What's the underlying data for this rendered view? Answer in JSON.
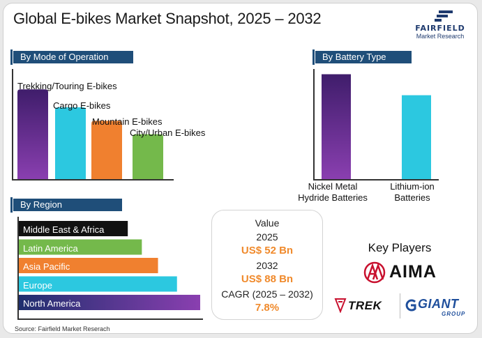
{
  "title": "Global E-bikes Market Snapshot, 2025 – 2032",
  "logo": {
    "name": "FAIRFIELD",
    "sub": "Market Research",
    "icon": "fairfield-logo-icon"
  },
  "sections": {
    "mode": "By Mode of Operation",
    "battery": "By Battery Type",
    "region": "By Region"
  },
  "colors": {
    "header": "#1f4e79",
    "purple_top": "#3f1d6b",
    "purple_bottom": "#8a3fb0",
    "cyan": "#2cc8e0",
    "orange": "#f0802f",
    "green": "#74b94b",
    "black": "#111111",
    "accent": "#f08a2c",
    "aima_red": "#c8102e",
    "giant_blue": "#1f4f9c"
  },
  "chart_data": [
    {
      "type": "bar",
      "title": "By Mode of Operation",
      "categories": [
        "Trekking/Touring E-bikes",
        "Cargo E-bikes",
        "Mountain E-bikes",
        "City/Urban E-bikes"
      ],
      "values": [
        4,
        3.2,
        2.6,
        2
      ],
      "ylim": [
        0,
        4.6
      ]
    },
    {
      "type": "bar",
      "title": "By Battery Type",
      "categories": [
        "Nickel Metal Hydride Batteries",
        "Lithium-ion Batteries"
      ],
      "category_lines": [
        [
          "Nickel Metal",
          "Hydride Batteries"
        ],
        [
          "Lithium-ion",
          "Batteries"
        ]
      ],
      "values": [
        10,
        8
      ],
      "ylim": [
        0,
        10.5
      ]
    },
    {
      "type": "bar",
      "orientation": "horizontal",
      "title": "By Region",
      "categories": [
        "Middle East & Africa",
        "Latin America",
        "Asia Pacific",
        "Europe",
        "North America"
      ],
      "values": [
        155,
        175,
        198,
        225,
        258
      ],
      "xlim": [
        0,
        260
      ]
    }
  ],
  "market_value": {
    "label": "Value",
    "year1": "2025",
    "value1": "US$ 52 Bn",
    "year2": "2032",
    "value2": "US$ 88 Bn",
    "cagr_label": "CAGR (2025 – 2032)",
    "cagr_value": "7.8%"
  },
  "key_players": {
    "heading": "Key Players",
    "brands": [
      "AIMA",
      "TREK",
      "GIANT"
    ],
    "giant_sub": "GROUP"
  },
  "source": "Source: Fairfield Market Reserach"
}
